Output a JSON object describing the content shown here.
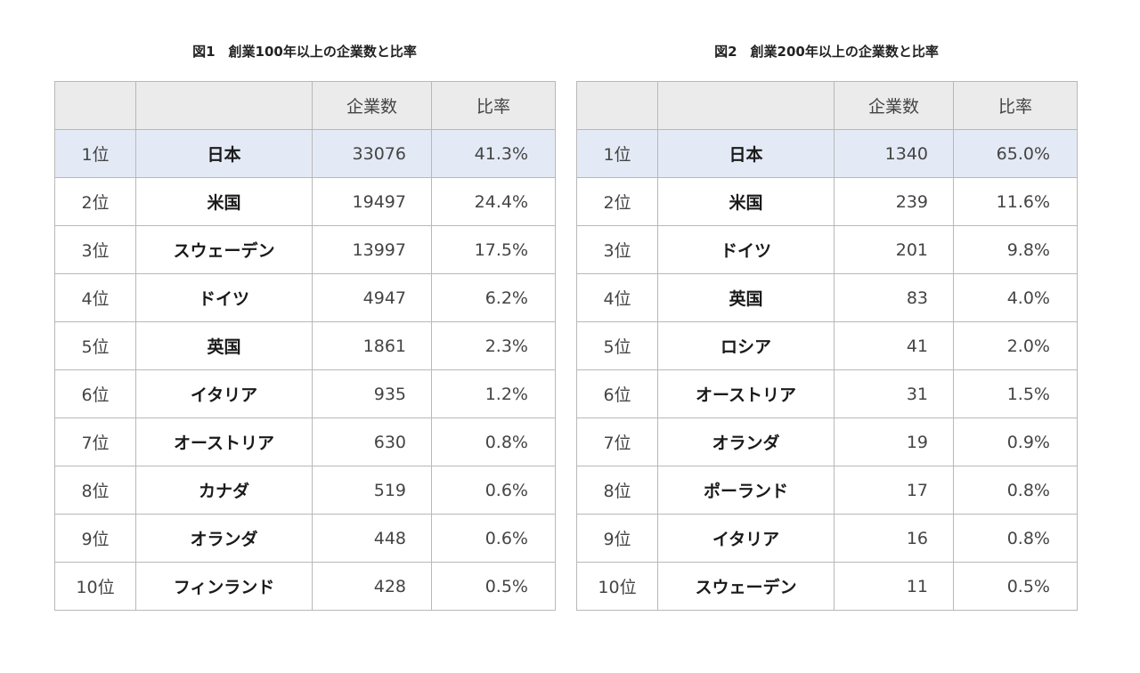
{
  "figures": [
    {
      "title": "図1　創業100年以上の企業数と比率",
      "header": {
        "rank": "",
        "country": "",
        "count": "企業数",
        "ratio": "比率"
      },
      "rows": [
        {
          "rank": "1位",
          "country": "日本",
          "count": "33076",
          "ratio": "41.3%"
        },
        {
          "rank": "2位",
          "country": "米国",
          "count": "19497",
          "ratio": "24.4%"
        },
        {
          "rank": "3位",
          "country": "スウェーデン",
          "count": "13997",
          "ratio": "17.5%"
        },
        {
          "rank": "4位",
          "country": "ドイツ",
          "count": "4947",
          "ratio": "6.2%"
        },
        {
          "rank": "5位",
          "country": "英国",
          "count": "1861",
          "ratio": "2.3%"
        },
        {
          "rank": "6位",
          "country": "イタリア",
          "count": "935",
          "ratio": "1.2%"
        },
        {
          "rank": "7位",
          "country": "オーストリア",
          "count": "630",
          "ratio": "0.8%"
        },
        {
          "rank": "8位",
          "country": "カナダ",
          "count": "519",
          "ratio": "0.6%"
        },
        {
          "rank": "9位",
          "country": "オランダ",
          "count": "448",
          "ratio": "0.6%"
        },
        {
          "rank": "10位",
          "country": "フィンランド",
          "count": "428",
          "ratio": "0.5%"
        }
      ]
    },
    {
      "title": "図2　創業200年以上の企業数と比率",
      "header": {
        "rank": "",
        "country": "",
        "count": "企業数",
        "ratio": "比率"
      },
      "rows": [
        {
          "rank": "1位",
          "country": "日本",
          "count": "1340",
          "ratio": "65.0%"
        },
        {
          "rank": "2位",
          "country": "米国",
          "count": "239",
          "ratio": "11.6%"
        },
        {
          "rank": "3位",
          "country": "ドイツ",
          "count": "201",
          "ratio": "9.8%"
        },
        {
          "rank": "4位",
          "country": "英国",
          "count": "83",
          "ratio": "4.0%"
        },
        {
          "rank": "5位",
          "country": "ロシア",
          "count": "41",
          "ratio": "2.0%"
        },
        {
          "rank": "6位",
          "country": "オーストリア",
          "count": "31",
          "ratio": "1.5%"
        },
        {
          "rank": "7位",
          "country": "オランダ",
          "count": "19",
          "ratio": "0.9%"
        },
        {
          "rank": "8位",
          "country": "ポーランド",
          "count": "17",
          "ratio": "0.8%"
        },
        {
          "rank": "9位",
          "country": "イタリア",
          "count": "16",
          "ratio": "0.8%"
        },
        {
          "rank": "10位",
          "country": "スウェーデン",
          "count": "11",
          "ratio": "0.5%"
        }
      ]
    }
  ],
  "colors": {
    "header_bg": "#ebebeb",
    "highlight_bg": "#e4eaf5",
    "border": "#b8b8b8"
  },
  "chart_data": [
    {
      "type": "table",
      "title": "図1　創業100年以上の企業数と比率",
      "columns": [
        "",
        "",
        "企業数",
        "比率"
      ],
      "rows": [
        [
          "1位",
          "日本",
          33076,
          "41.3%"
        ],
        [
          "2位",
          "米国",
          19497,
          "24.4%"
        ],
        [
          "3位",
          "スウェーデン",
          13997,
          "17.5%"
        ],
        [
          "4位",
          "ドイツ",
          4947,
          "6.2%"
        ],
        [
          "5位",
          "英国",
          1861,
          "2.3%"
        ],
        [
          "6位",
          "イタリア",
          935,
          "1.2%"
        ],
        [
          "7位",
          "オーストリア",
          630,
          "0.8%"
        ],
        [
          "8位",
          "カナダ",
          519,
          "0.6%"
        ],
        [
          "9位",
          "オランダ",
          448,
          "0.6%"
        ],
        [
          "10位",
          "フィンランド",
          428,
          "0.5%"
        ]
      ]
    },
    {
      "type": "table",
      "title": "図2　創業200年以上の企業数と比率",
      "columns": [
        "",
        "",
        "企業数",
        "比率"
      ],
      "rows": [
        [
          "1位",
          "日本",
          1340,
          "65.0%"
        ],
        [
          "2位",
          "米国",
          239,
          "11.6%"
        ],
        [
          "3位",
          "ドイツ",
          201,
          "9.8%"
        ],
        [
          "4位",
          "英国",
          83,
          "4.0%"
        ],
        [
          "5位",
          "ロシア",
          41,
          "2.0%"
        ],
        [
          "6位",
          "オーストリア",
          31,
          "1.5%"
        ],
        [
          "7位",
          "オランダ",
          19,
          "0.9%"
        ],
        [
          "8位",
          "ポーランド",
          17,
          "0.8%"
        ],
        [
          "9位",
          "イタリア",
          16,
          "0.8%"
        ],
        [
          "10位",
          "スウェーデン",
          11,
          "0.5%"
        ]
      ]
    }
  ]
}
